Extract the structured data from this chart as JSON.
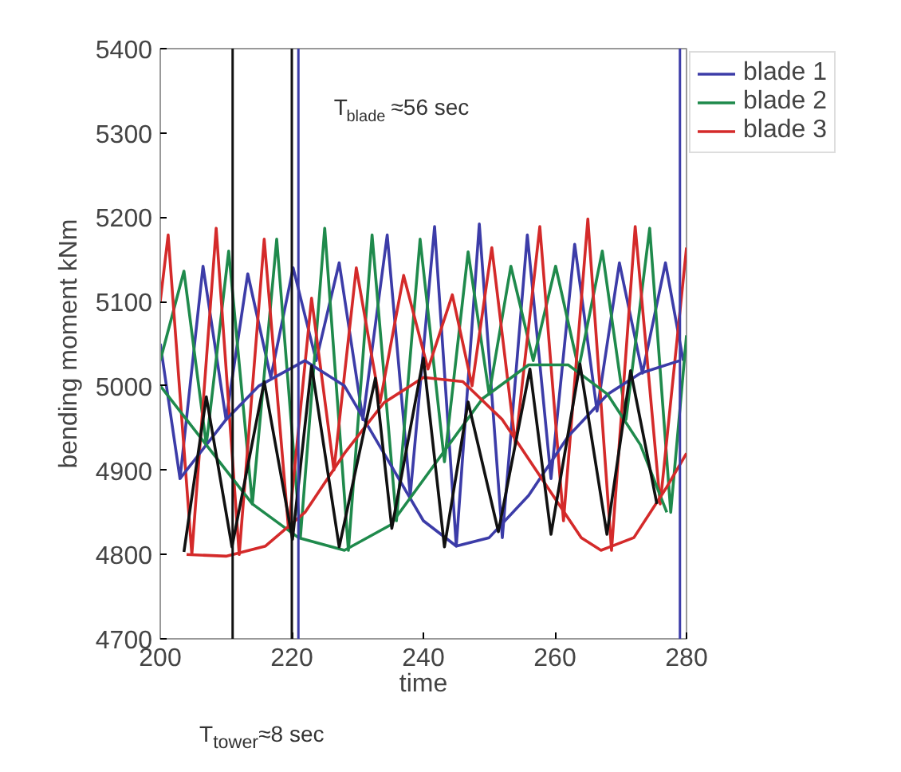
{
  "chart_data": {
    "type": "line",
    "xlabel": "time",
    "ylabel": "bending moment kNm",
    "xlim": [
      200,
      280
    ],
    "xticks": [
      200,
      220,
      240,
      260,
      280
    ],
    "ylim": [
      4700,
      5400
    ],
    "yticks": [
      4700,
      4800,
      4900,
      5000,
      5100,
      5200,
      5300,
      5400
    ],
    "grid": false,
    "legend": "right",
    "marker": "none",
    "line_style": "solid",
    "series": [
      {
        "name": "blade 1",
        "color": "#3c3ca8",
        "x": [
          200,
          203,
          206.5,
          210,
          213.3,
          216.8,
          220.2,
          223.7,
          227.2,
          230.8,
          234.5,
          238,
          241.7,
          245,
          248.5,
          252,
          255.8,
          259.4,
          263,
          266.4,
          269.8,
          273.3,
          276.8,
          279.5
        ],
        "values": [
          5050,
          4890,
          5142,
          4960,
          5133,
          5010,
          5140,
          5030,
          5146,
          4960,
          5179,
          4870,
          5189,
          4810,
          5192,
          4820,
          5179,
          4890,
          5168,
          4970,
          5146,
          5015,
          5146,
          5030
        ]
      },
      {
        "name": "blade 2",
        "color": "#1f8a4c",
        "x": [
          200,
          203.6,
          207,
          210.4,
          214,
          217.7,
          221.3,
          225,
          228.6,
          232.2,
          235.9,
          239.5,
          243.2,
          246.8,
          250,
          253.3,
          256.7,
          260.1,
          263.6,
          267.2,
          270.8,
          274.4,
          277.6,
          280
        ],
        "values": [
          5030,
          5136,
          4930,
          5160,
          4860,
          5174,
          4820,
          5187,
          4805,
          5179,
          4840,
          5174,
          4910,
          5159,
          4990,
          5142,
          5030,
          5142,
          5020,
          5160,
          4960,
          5187,
          4850,
          5060
        ]
      },
      {
        "name": "blade 3",
        "color": "#d42a2a",
        "x": [
          200,
          201.2,
          204.8,
          208.5,
          212,
          215.8,
          219.5,
          223,
          226.4,
          229.8,
          233.4,
          237,
          240.7,
          244.4,
          247.4,
          250.4,
          254,
          257.7,
          261.3,
          265,
          268.6,
          272.2,
          276,
          280
        ],
        "values": [
          5100,
          5179,
          4800,
          5187,
          4800,
          5174,
          4830,
          5104,
          4900,
          5140,
          4980,
          5131,
          5020,
          5108,
          5000,
          5164,
          4930,
          5189,
          4840,
          5198,
          4805,
          5189,
          4860,
          5164
        ]
      },
      {
        "color": "#3c3ca8",
        "x": [
          203,
          210,
          215,
          222,
          228,
          234,
          240,
          245,
          250,
          256,
          262,
          268,
          273,
          279
        ],
        "values": [
          4890,
          4960,
          5000,
          5030,
          5000,
          4920,
          4840,
          4810,
          4820,
          4870,
          4940,
          4990,
          5015,
          5030
        ]
      },
      {
        "color": "#1f8a4c",
        "x": [
          200,
          207,
          214,
          221,
          228,
          235,
          242,
          249,
          256,
          262,
          268,
          273,
          277
        ],
        "values": [
          5000,
          4930,
          4860,
          4820,
          4805,
          4835,
          4910,
          4985,
          5025,
          5025,
          4990,
          4930,
          4850
        ]
      },
      {
        "color": "#d42a2a",
        "x": [
          204,
          210,
          216,
          222,
          228,
          234,
          240,
          246,
          252,
          258,
          264,
          267,
          272,
          277,
          280
        ],
        "values": [
          4800,
          4798,
          4810,
          4850,
          4920,
          4980,
          5010,
          5005,
          4960,
          4890,
          4820,
          4805,
          4820,
          4880,
          4920
        ]
      },
      {
        "color": "#111111",
        "x": [
          203.6,
          207,
          210.9,
          215.8,
          220.1,
          223,
          227.2,
          232.7,
          235.2,
          240,
          243.2,
          246.8,
          251.4,
          256.2,
          259.4,
          263.8,
          267.9,
          271.5,
          275.5
        ],
        "values": [
          4803,
          4987,
          4809,
          5005,
          4818,
          5024,
          4809,
          5009,
          4831,
          5033,
          4809,
          4981,
          4827,
          5020,
          4824,
          5026,
          4824,
          5018,
          4860
        ]
      }
    ],
    "ref_lines": [
      {
        "axis": "x",
        "value": 221,
        "color": "#3c3ca8"
      },
      {
        "axis": "x",
        "value": 279,
        "color": "#3c3ca8"
      },
      {
        "axis": "x",
        "value": 211,
        "color": "#111111"
      },
      {
        "axis": "x",
        "value": 220,
        "color": "#111111"
      }
    ],
    "annotations": [
      "T$_{blade}$≈56 sec",
      "T$_{tower}$≈8 sec"
    ]
  }
}
